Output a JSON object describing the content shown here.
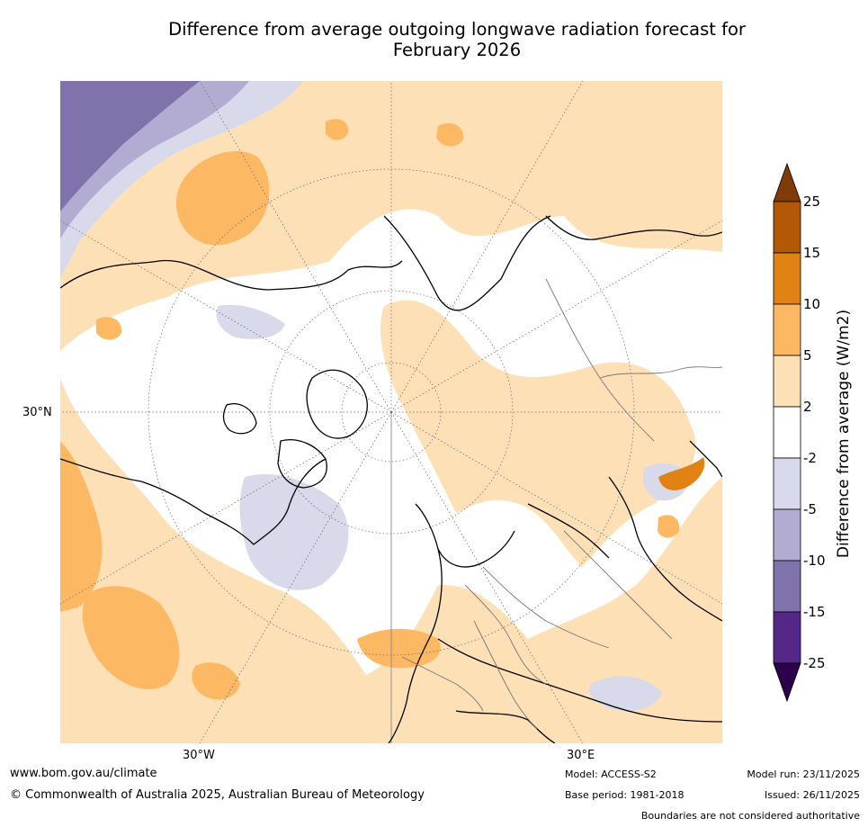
{
  "title": {
    "line1": "Difference from average outgoing longwave radiation forecast for",
    "line2": "February 2026"
  },
  "map": {
    "projection": "north-polar-stereographic",
    "lat_label": "30°N",
    "lon_labels": [
      "30°W",
      "30°E"
    ]
  },
  "colorbar": {
    "title": "Difference from average (W/m2)",
    "ticks": [
      "25",
      "15",
      "10",
      "5",
      "2",
      "-2",
      "-5",
      "-10",
      "-15",
      "-25"
    ],
    "colors": [
      "#7f3b08",
      "#b35806",
      "#e08214",
      "#fdb863",
      "#fee0b6",
      "#ffffff",
      "#d8daeb",
      "#b2abd2",
      "#8073ac",
      "#542788",
      "#2d004b"
    ]
  },
  "footer": {
    "website": "www.bom.gov.au/climate",
    "copyright": "© Commonwealth of Australia 2025, Australian Bureau of Meteorology",
    "model": "Model: ACCESS-S2",
    "base_period": "Base period: 1981-2018",
    "model_run": "Model run: 23/11/2025",
    "issued": "Issued: 26/11/2025",
    "disclaimer": "Boundaries are not considered authoritative"
  }
}
